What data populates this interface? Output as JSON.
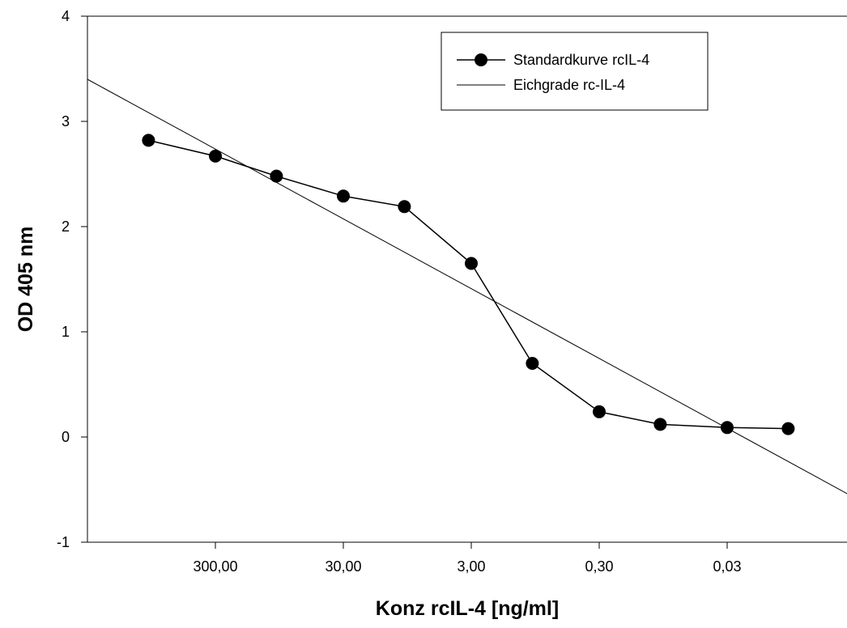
{
  "chart_data": {
    "type": "line",
    "xlabel": "Konz rcIL-4 [ng/ml]",
    "ylabel": "OD 405 nm",
    "x_scale": "log",
    "x_reversed": true,
    "x_ticks": [
      {
        "value": 300,
        "label": "300,00"
      },
      {
        "value": 30,
        "label": "30,00"
      },
      {
        "value": 3,
        "label": "3,00"
      },
      {
        "value": 0.3,
        "label": "0,30"
      },
      {
        "value": 0.03,
        "label": "0,03"
      }
    ],
    "xlim": [
      3000,
      0.003
    ],
    "y_ticks": [
      {
        "value": -1,
        "label": "-1"
      },
      {
        "value": 0,
        "label": "0"
      },
      {
        "value": 1,
        "label": "1"
      },
      {
        "value": 2,
        "label": "2"
      },
      {
        "value": 3,
        "label": "3"
      },
      {
        "value": 4,
        "label": "4"
      }
    ],
    "ylim": [
      -1,
      4
    ],
    "legend_position": "top-right",
    "series": [
      {
        "name": "Standardkurve rcIL-4",
        "style": "line-markers",
        "points": [
          {
            "x": 1000,
            "y": 2.82
          },
          {
            "x": 300,
            "y": 2.67
          },
          {
            "x": 100,
            "y": 2.48
          },
          {
            "x": 30,
            "y": 2.29
          },
          {
            "x": 10,
            "y": 2.19
          },
          {
            "x": 3,
            "y": 1.65
          },
          {
            "x": 1,
            "y": 0.7
          },
          {
            "x": 0.3,
            "y": 0.24
          },
          {
            "x": 0.1,
            "y": 0.12
          },
          {
            "x": 0.03,
            "y": 0.09
          },
          {
            "x": 0.01,
            "y": 0.08
          }
        ]
      },
      {
        "name": "Eichgrade rc-IL-4",
        "style": "line",
        "points": [
          {
            "x": 3000,
            "y": 3.4
          },
          {
            "x": 0.003,
            "y": -0.58
          }
        ]
      }
    ],
    "colors": {
      "line": "#000000",
      "marker": "#000000",
      "background": "#ffffff"
    }
  }
}
